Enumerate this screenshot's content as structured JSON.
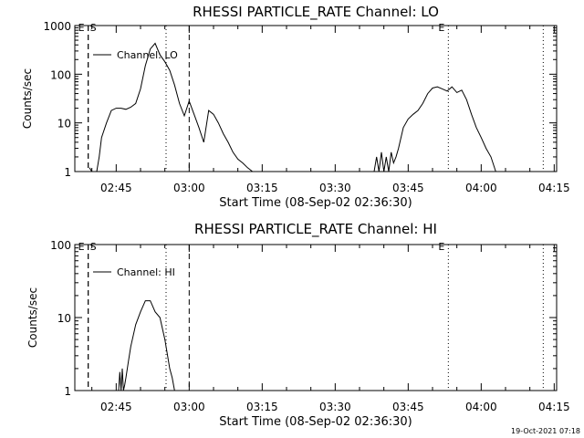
{
  "chart_data": [
    {
      "type": "line",
      "title": "RHESSI PARTICLE_RATE Channel: LO",
      "xlabel": "Start Time (08-Sep-02 02:36:30)",
      "ylabel": "Counts/sec",
      "yscale": "log",
      "ylim": [
        1,
        1000
      ],
      "xlim": [
        "02:36:30",
        "04:15:30"
      ],
      "x_ticks": [
        "02:45",
        "03:00",
        "03:15",
        "03:30",
        "03:45",
        "04:00",
        "04:15"
      ],
      "y_ticks": [
        "1",
        "10",
        "100",
        "1000"
      ],
      "legend": "Channel: LO",
      "grid": false,
      "markers": [
        {
          "time": "02:39:15",
          "style": "dashed",
          "label": "E"
        },
        {
          "time": "02:39:15",
          "style": "dashed",
          "label": "S"
        },
        {
          "time": "02:55:15",
          "style": "dotted",
          "label": ""
        },
        {
          "time": "03:00:00",
          "style": "dashed",
          "label": ""
        },
        {
          "time": "03:53:15",
          "style": "dotted",
          "label": "E"
        },
        {
          "time": "04:12:45",
          "style": "dotted",
          "label": ""
        }
      ],
      "series": [
        {
          "name": "Channel: LO",
          "x": [
            "02:39:30",
            "02:40:00",
            "02:40:30",
            "02:41:00",
            "02:41:30",
            "02:42:00",
            "02:43:00",
            "02:44:00",
            "02:45:00",
            "02:46:00",
            "02:47:00",
            "02:48:00",
            "02:49:00",
            "02:50:00",
            "02:51:00",
            "02:52:00",
            "02:53:00",
            "02:54:00",
            "02:55:00",
            "02:56:00",
            "02:57:00",
            "02:58:00",
            "02:59:00",
            "02:59:30",
            "03:00:00",
            "03:01:00",
            "03:02:00",
            "03:03:00",
            "03:04:00",
            "03:05:00",
            "03:06:00",
            "03:07:00",
            "03:08:00",
            "03:09:00",
            "03:10:00",
            "03:11:00",
            "03:12:00",
            "03:13:00"
          ],
          "y": [
            1.2,
            1,
            1,
            1,
            2,
            5,
            10,
            18,
            20,
            20,
            19,
            21,
            25,
            50,
            150,
            330,
            430,
            250,
            180,
            120,
            60,
            25,
            14,
            20,
            28,
            15,
            8,
            4,
            18,
            15,
            10,
            6,
            4,
            2.5,
            1.8,
            1.5,
            1.2,
            1
          ]
        },
        {
          "name": "Channel: LO",
          "x": [
            "03:38:00",
            "03:38:30",
            "03:39:00",
            "03:39:30",
            "03:40:00",
            "03:40:30",
            "03:41:00",
            "03:41:30",
            "03:42:00",
            "03:42:30",
            "03:43:00",
            "03:44:00",
            "03:45:00",
            "03:46:00",
            "03:47:00",
            "03:48:00",
            "03:49:00",
            "03:50:00",
            "03:51:00",
            "03:52:00",
            "03:53:00",
            "03:54:00",
            "03:55:00",
            "03:56:00",
            "03:57:00",
            "03:58:00",
            "03:59:00",
            "04:00:00",
            "04:01:00",
            "04:02:00",
            "04:03:00"
          ],
          "y": [
            1,
            2,
            1,
            2.5,
            1,
            2,
            1,
            2.5,
            1.5,
            2,
            3,
            8,
            12,
            15,
            18,
            25,
            40,
            52,
            55,
            50,
            45,
            55,
            42,
            47,
            30,
            15,
            8,
            5,
            3,
            2,
            1
          ]
        }
      ]
    },
    {
      "type": "line",
      "title": "RHESSI PARTICLE_RATE Channel: HI",
      "xlabel": "Start Time (08-Sep-02 02:36:30)",
      "ylabel": "Counts/sec",
      "yscale": "log",
      "ylim": [
        1,
        100
      ],
      "xlim": [
        "02:36:30",
        "04:15:30"
      ],
      "x_ticks": [
        "02:45",
        "03:00",
        "03:15",
        "03:30",
        "03:45",
        "04:00",
        "04:15"
      ],
      "y_ticks": [
        "1",
        "10",
        "100"
      ],
      "legend": "Channel: HI",
      "grid": false,
      "markers": [
        {
          "time": "02:39:15",
          "style": "dashed",
          "label": "E"
        },
        {
          "time": "02:39:15",
          "style": "dashed",
          "label": "S"
        },
        {
          "time": "02:55:15",
          "style": "dotted",
          "label": ""
        },
        {
          "time": "03:00:00",
          "style": "dashed",
          "label": ""
        },
        {
          "time": "03:53:15",
          "style": "dotted",
          "label": "E"
        },
        {
          "time": "04:12:45",
          "style": "dotted",
          "label": ""
        }
      ],
      "series": [
        {
          "name": "Channel: HI",
          "x": [
            "02:45:30",
            "02:45:45",
            "02:46:00",
            "02:46:15",
            "02:46:30",
            "02:46:45",
            "02:47:00",
            "02:47:30",
            "02:48:00",
            "02:49:00",
            "02:50:00",
            "02:51:00",
            "02:52:00",
            "02:53:00",
            "02:54:00",
            "02:55:00",
            "02:56:00",
            "02:56:30",
            "02:57:00"
          ],
          "y": [
            1,
            1.8,
            1,
            2,
            1,
            1.2,
            1.5,
            2.5,
            4,
            8,
            12,
            17,
            17,
            12,
            10,
            5,
            2,
            1.5,
            1
          ]
        }
      ]
    }
  ],
  "footer": {
    "timestamp": "19-Oct-2021 07:18"
  }
}
